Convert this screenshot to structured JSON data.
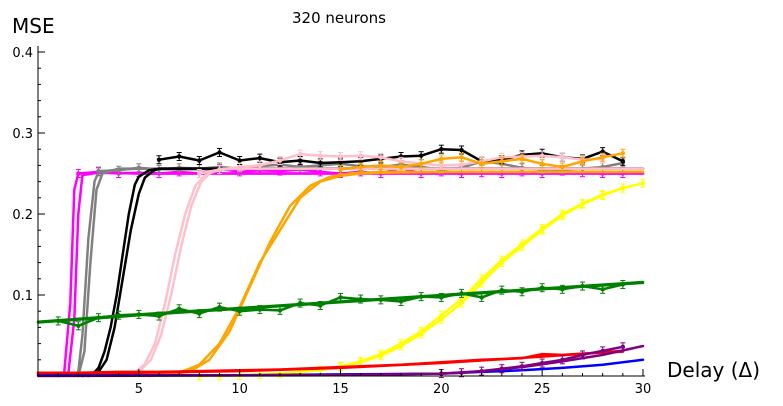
{
  "chart_data": {
    "type": "line",
    "title": "320 neurons",
    "xlabel": "Delay (Δ)",
    "ylabel": "MSE",
    "xlim": [
      0,
      30
    ],
    "ylim": [
      0,
      0.4
    ],
    "xticks": [
      5,
      10,
      15,
      20,
      25,
      30
    ],
    "yticks": [
      0.1,
      0.2,
      0.3,
      0.4
    ],
    "ytick_labels": [
      "0.1",
      "0.2",
      "0.3",
      "0.4"
    ],
    "grid": false,
    "legend": "none",
    "series": [
      {
        "color": "#ff00ff",
        "x": [
          1,
          1.3,
          1.6,
          1.8,
          2,
          3,
          5,
          10,
          15,
          20,
          25,
          30
        ],
        "y": [
          0,
          0.004,
          0.09,
          0.23,
          0.25,
          0.251,
          0.25,
          0.25,
          0.25,
          0.25,
          0.25,
          0.25
        ]
      },
      {
        "color": "#ff00ff",
        "x": [
          1,
          1.5,
          1.8,
          2,
          2.2,
          3,
          5,
          10,
          15,
          20,
          25,
          30
        ],
        "y": [
          0,
          0.003,
          0.07,
          0.2,
          0.248,
          0.251,
          0.25,
          0.25,
          0.25,
          0.25,
          0.25,
          0.25
        ]
      },
      {
        "color": "#ff00ff",
        "x": [
          2,
          3,
          4,
          5,
          6,
          7,
          8,
          9,
          10,
          11,
          12,
          13,
          14,
          15,
          16,
          17,
          18,
          19,
          20,
          21,
          22,
          23,
          24,
          25,
          26,
          27,
          28,
          29
        ],
        "y": [
          0.25,
          0.252,
          0.25,
          0.251,
          0.25,
          0.252,
          0.25,
          0.256,
          0.252,
          0.254,
          0.253,
          0.255,
          0.252,
          0.25,
          0.252,
          0.25,
          0.257,
          0.25,
          0.252,
          0.25,
          0.251,
          0.25,
          0.252,
          0.25,
          0.253,
          0.251,
          0.25,
          0.25
        ]
      },
      {
        "color": "#808080",
        "x": [
          1.8,
          2,
          2.2,
          2.5,
          2.8,
          3,
          4,
          5,
          7,
          10,
          15,
          20,
          25,
          29
        ],
        "y": [
          0,
          0.005,
          0.05,
          0.17,
          0.24,
          0.252,
          0.255,
          0.256,
          0.255,
          0.256,
          0.256,
          0.256,
          0.256,
          0.256
        ]
      },
      {
        "color": "#808080",
        "x": [
          2,
          2.3,
          2.6,
          2.9,
          3.2,
          4,
          5,
          7,
          10,
          15,
          20,
          25,
          29
        ],
        "y": [
          0,
          0.03,
          0.14,
          0.23,
          0.25,
          0.256,
          0.256,
          0.256,
          0.256,
          0.256,
          0.256,
          0.256,
          0.256
        ]
      },
      {
        "color": "#808080",
        "x": [
          3,
          4,
          5,
          6,
          7,
          8,
          9,
          10,
          11,
          12,
          13,
          14,
          15,
          16,
          17,
          18,
          19,
          20,
          21,
          22,
          23,
          24,
          25,
          26,
          27,
          28,
          29
        ],
        "y": [
          0.253,
          0.254,
          0.257,
          0.255,
          0.257,
          0.256,
          0.258,
          0.256,
          0.259,
          0.261,
          0.258,
          0.26,
          0.262,
          0.259,
          0.258,
          0.261,
          0.258,
          0.255,
          0.257,
          0.265,
          0.262,
          0.257,
          0.255,
          0.255,
          0.256,
          0.258,
          0.263
        ]
      },
      {
        "color": "#000000",
        "x": [
          2.2,
          2.7,
          3,
          3.3,
          3.6,
          3.9,
          4.2,
          4.5,
          4.8,
          5,
          5.5,
          6,
          7,
          10,
          15,
          20,
          25,
          30
        ],
        "y": [
          0,
          0.002,
          0.01,
          0.03,
          0.06,
          0.1,
          0.15,
          0.2,
          0.236,
          0.246,
          0.254,
          0.256,
          0.256,
          0.256,
          0.256,
          0.256,
          0.256,
          0.256
        ]
      },
      {
        "color": "#000000",
        "x": [
          2.5,
          3,
          3.4,
          3.8,
          4.2,
          4.6,
          5,
          5.3,
          5.7,
          6,
          7,
          10,
          15,
          20,
          25,
          30
        ],
        "y": [
          0,
          0.005,
          0.02,
          0.06,
          0.12,
          0.18,
          0.225,
          0.245,
          0.253,
          0.256,
          0.256,
          0.256,
          0.256,
          0.256,
          0.256,
          0.256
        ]
      },
      {
        "color": "#000000",
        "x": [
          6,
          7,
          8,
          9,
          10,
          11,
          12,
          13,
          14,
          15,
          16,
          17,
          18,
          19,
          20,
          21,
          22,
          23,
          24,
          25,
          26,
          27,
          28,
          29
        ],
        "y": [
          0.267,
          0.271,
          0.266,
          0.276,
          0.266,
          0.269,
          0.264,
          0.266,
          0.263,
          0.264,
          0.265,
          0.268,
          0.271,
          0.272,
          0.28,
          0.279,
          0.265,
          0.267,
          0.273,
          0.275,
          0.27,
          0.268,
          0.277,
          0.265
        ]
      },
      {
        "color": "#ffc0cb",
        "x": [
          4,
          4.8,
          5.3,
          5.8,
          6.3,
          6.8,
          7.3,
          7.8,
          8.3,
          9,
          10,
          15,
          20,
          25,
          30
        ],
        "y": [
          0,
          0.004,
          0.015,
          0.04,
          0.09,
          0.15,
          0.2,
          0.235,
          0.248,
          0.255,
          0.256,
          0.256,
          0.256,
          0.256,
          0.256
        ]
      },
      {
        "color": "#ffc0cb",
        "x": [
          4.3,
          5,
          5.6,
          6.1,
          6.6,
          7.1,
          7.6,
          8.1,
          8.6,
          9.2,
          10,
          15,
          20,
          25,
          30
        ],
        "y": [
          0,
          0.005,
          0.02,
          0.05,
          0.1,
          0.16,
          0.21,
          0.24,
          0.252,
          0.256,
          0.256,
          0.256,
          0.256,
          0.256,
          0.256
        ]
      },
      {
        "color": "#ffc0cb",
        "x": [
          8,
          9,
          10,
          11,
          12,
          13,
          14,
          15,
          16,
          17,
          18,
          19,
          20,
          21,
          22,
          23,
          24,
          25,
          26,
          27,
          28
        ],
        "y": [
          0.25,
          0.255,
          0.258,
          0.26,
          0.266,
          0.274,
          0.272,
          0.271,
          0.272,
          0.27,
          0.265,
          0.262,
          0.26,
          0.261,
          0.265,
          0.27,
          0.271,
          0.272,
          0.27,
          0.267,
          0.268
        ]
      },
      {
        "color": "#ffa500",
        "x": [
          5,
          7,
          8,
          9,
          10,
          11,
          12,
          12.5,
          13,
          14,
          15,
          16,
          17,
          20,
          25,
          30
        ],
        "y": [
          0,
          0.004,
          0.014,
          0.04,
          0.085,
          0.14,
          0.18,
          0.2,
          0.22,
          0.24,
          0.247,
          0.25,
          0.251,
          0.252,
          0.252,
          0.252
        ]
      },
      {
        "color": "#ffa500",
        "x": [
          5.5,
          7.5,
          8.5,
          9.5,
          10.5,
          11.5,
          12.5,
          13.5,
          14.5,
          15.5,
          17,
          20,
          25,
          30
        ],
        "y": [
          0,
          0.005,
          0.02,
          0.055,
          0.11,
          0.165,
          0.21,
          0.235,
          0.246,
          0.25,
          0.252,
          0.252,
          0.252,
          0.252
        ]
      },
      {
        "color": "#ffa500",
        "x": [
          15,
          16,
          17,
          18,
          19,
          20,
          21,
          22,
          23,
          24,
          25,
          26,
          27,
          28,
          29
        ],
        "y": [
          0.255,
          0.258,
          0.26,
          0.258,
          0.262,
          0.268,
          0.27,
          0.262,
          0.265,
          0.268,
          0.262,
          0.258,
          0.265,
          0.27,
          0.275
        ]
      },
      {
        "color": "#ffff00",
        "x": [
          8,
          10,
          12,
          14,
          15,
          16,
          17,
          18,
          19,
          20,
          21,
          22,
          23,
          24,
          25,
          26,
          27,
          28,
          29,
          30
        ],
        "y": [
          0,
          0.001,
          0.003,
          0.007,
          0.012,
          0.018,
          0.027,
          0.04,
          0.055,
          0.075,
          0.095,
          0.12,
          0.143,
          0.163,
          0.182,
          0.2,
          0.213,
          0.224,
          0.232,
          0.238
        ]
      },
      {
        "color": "#ffff00",
        "x": [
          9,
          11,
          13,
          15,
          16,
          17,
          18,
          19,
          20,
          21,
          22,
          23,
          24,
          25,
          26,
          27,
          28,
          29
        ],
        "y": [
          0,
          0.002,
          0.005,
          0.011,
          0.017,
          0.025,
          0.037,
          0.052,
          0.07,
          0.09,
          0.115,
          0.14,
          0.16,
          0.18,
          0.198,
          0.212,
          0.223,
          0.232
        ]
      },
      {
        "color": "#008000",
        "x": [
          0,
          5,
          10,
          15,
          20,
          25,
          30
        ],
        "y": [
          0.066,
          0.075,
          0.083,
          0.091,
          0.099,
          0.107,
          0.115
        ]
      },
      {
        "color": "#008000",
        "x": [
          0,
          5,
          10,
          15,
          20,
          25,
          30
        ],
        "y": [
          0.067,
          0.076,
          0.084,
          0.092,
          0.1,
          0.108,
          0.116
        ]
      },
      {
        "color": "#008000",
        "x": [
          1,
          2,
          3,
          4,
          5,
          6,
          7,
          8,
          9,
          10,
          11,
          12,
          13,
          14,
          15,
          16,
          17,
          18,
          19,
          20,
          21,
          22,
          23,
          24,
          25,
          26,
          27,
          28,
          29
        ],
        "y": [
          0.068,
          0.062,
          0.072,
          0.075,
          0.076,
          0.074,
          0.083,
          0.077,
          0.085,
          0.08,
          0.082,
          0.081,
          0.09,
          0.087,
          0.097,
          0.095,
          0.094,
          0.092,
          0.098,
          0.097,
          0.102,
          0.097,
          0.106,
          0.104,
          0.109,
          0.107,
          0.111,
          0.107,
          0.113
        ]
      },
      {
        "color": "#ff0000",
        "x": [
          0,
          5,
          10,
          15,
          20,
          25,
          29
        ],
        "y": [
          0.003,
          0.004,
          0.006,
          0.01,
          0.016,
          0.024,
          0.031
        ]
      },
      {
        "color": "#ff0000",
        "x": [
          0,
          2,
          4,
          6,
          8,
          10,
          12,
          14,
          16,
          18,
          20,
          22,
          24,
          25,
          26,
          28,
          29
        ],
        "y": [
          0.004,
          0.004,
          0.005,
          0.005,
          0.006,
          0.007,
          0.008,
          0.01,
          0.012,
          0.014,
          0.017,
          0.02,
          0.022,
          0.027,
          0.026,
          0.029,
          0.03
        ]
      },
      {
        "color": "#0000ff",
        "x": [
          0,
          10,
          15,
          20,
          22,
          24,
          26,
          28,
          30
        ],
        "y": [
          0.001,
          0.001,
          0.002,
          0.003,
          0.005,
          0.007,
          0.01,
          0.014,
          0.02
        ]
      },
      {
        "color": "#800080",
        "x": [
          0,
          15,
          20,
          22,
          24,
          26,
          28,
          30
        ],
        "y": [
          0,
          0.001,
          0.003,
          0.006,
          0.011,
          0.018,
          0.026,
          0.037
        ]
      },
      {
        "color": "#800080",
        "x": [
          20,
          21,
          22,
          23,
          24,
          25,
          26,
          27,
          28,
          29
        ],
        "y": [
          0.003,
          0.004,
          0.006,
          0.009,
          0.012,
          0.016,
          0.02,
          0.026,
          0.031,
          0.036
        ]
      }
    ]
  }
}
